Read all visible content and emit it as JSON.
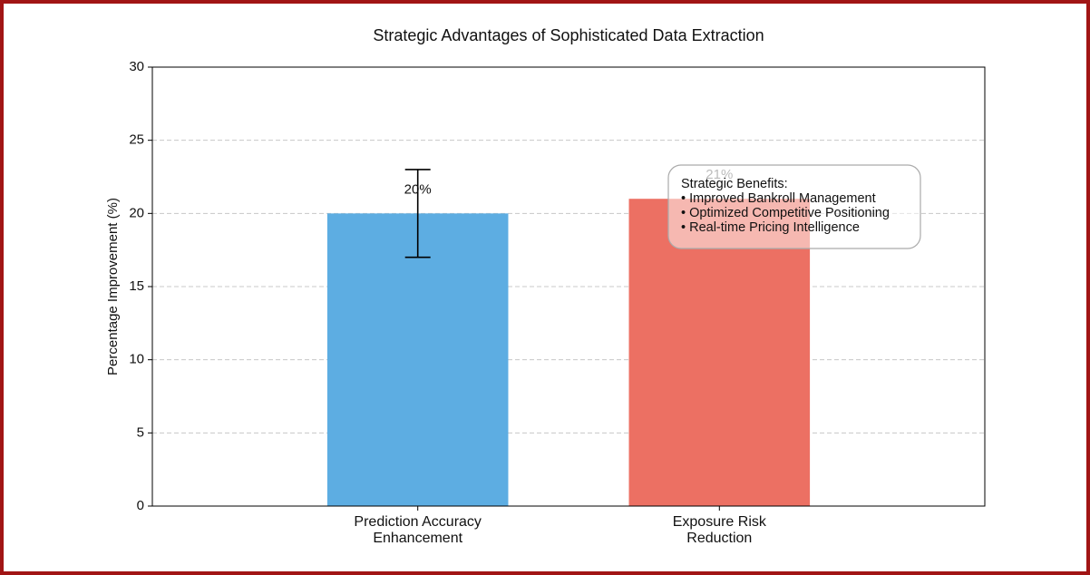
{
  "chart_data": {
    "type": "bar",
    "title": "Strategic Advantages of Sophisticated Data Extraction",
    "y_label": "Percentage Improvement (%)",
    "categories": [
      "Prediction Accuracy\nEnhancement",
      "Exposure Risk\nReduction"
    ],
    "values": [
      20,
      21
    ],
    "value_labels": [
      "20%",
      "21%"
    ],
    "errors": [
      3,
      null
    ],
    "colors": [
      "#5dade2",
      "#ec7063"
    ],
    "ylim": [
      0,
      30
    ],
    "yticks": [
      0,
      5,
      10,
      15,
      20,
      25,
      30
    ],
    "grid": true,
    "annotation": [
      "Strategic Benefits:",
      "• Improved Bankroll Management",
      "• Optimized Competitive Positioning",
      "• Real-time Pricing Intelligence"
    ]
  }
}
